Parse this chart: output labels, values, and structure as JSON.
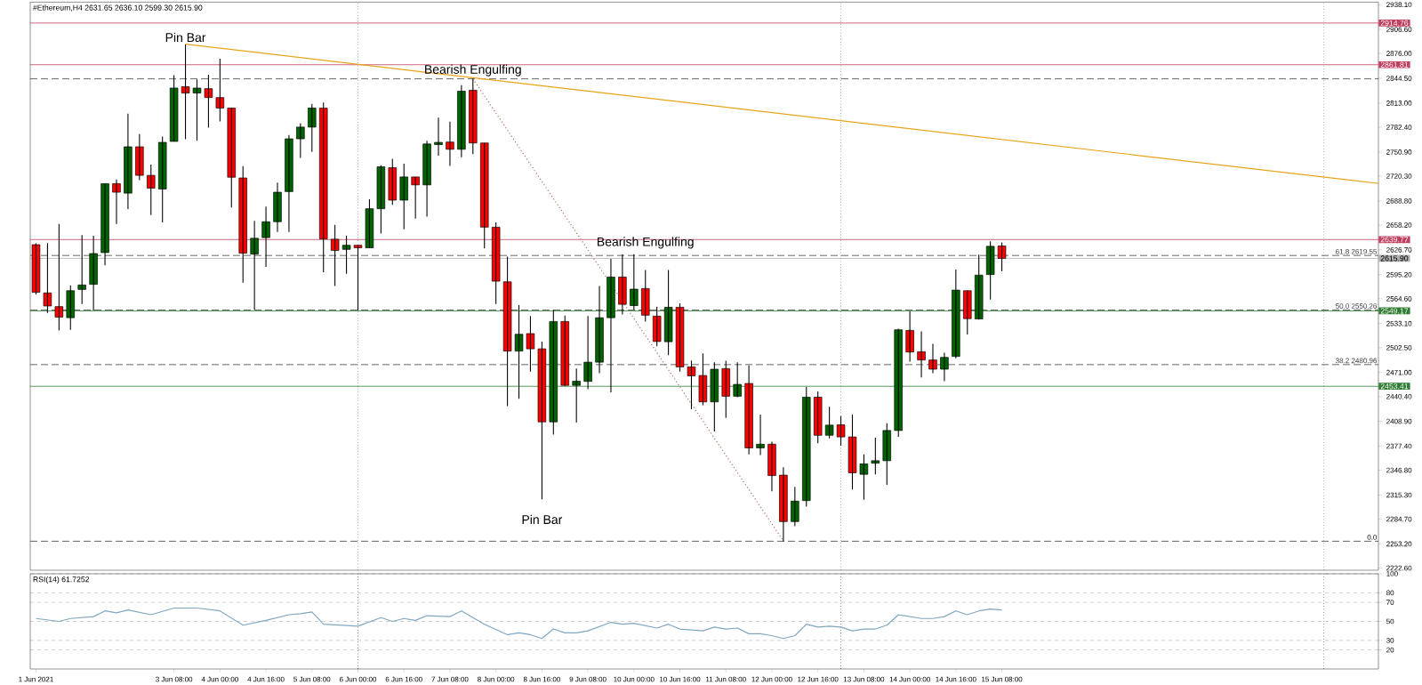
{
  "chart_data": [
    {
      "type": "candlestick",
      "title": "#Ethereum,H4  2631.65 2636.10 2599.30 2615.90",
      "x": [
        "2021-06-01T08:00",
        "2021-06-01T12:00",
        "2021-06-01T16:00",
        "2021-06-01T20:00",
        "2021-06-02T00:00",
        "2021-06-02T04:00",
        "2021-06-02T08:00",
        "2021-06-02T12:00",
        "2021-06-02T16:00",
        "2021-06-02T20:00",
        "2021-06-03T00:00",
        "2021-06-03T04:00",
        "2021-06-03T08:00",
        "2021-06-03T12:00",
        "2021-06-03T16:00",
        "2021-06-03T20:00",
        "2021-06-04T00:00",
        "2021-06-04T04:00",
        "2021-06-04T08:00",
        "2021-06-04T12:00",
        "2021-06-04T16:00",
        "2021-06-04T20:00",
        "2021-06-05T00:00",
        "2021-06-05T04:00",
        "2021-06-05T08:00",
        "2021-06-05T12:00",
        "2021-06-05T16:00",
        "2021-06-05T20:00",
        "2021-06-06T00:00",
        "2021-06-06T04:00",
        "2021-06-06T08:00",
        "2021-06-06T12:00",
        "2021-06-06T16:00",
        "2021-06-06T20:00",
        "2021-06-07T00:00",
        "2021-06-07T04:00",
        "2021-06-07T08:00",
        "2021-06-07T12:00",
        "2021-06-07T16:00",
        "2021-06-07T20:00",
        "2021-06-08T00:00",
        "2021-06-08T04:00",
        "2021-06-08T08:00",
        "2021-06-08T12:00",
        "2021-06-08T16:00",
        "2021-06-08T20:00",
        "2021-06-09T00:00",
        "2021-06-09T04:00",
        "2021-06-09T08:00",
        "2021-06-09T12:00",
        "2021-06-09T16:00",
        "2021-06-09T20:00",
        "2021-06-10T00:00",
        "2021-06-10T04:00",
        "2021-06-10T08:00",
        "2021-06-10T12:00",
        "2021-06-10T16:00",
        "2021-06-10T20:00",
        "2021-06-11T00:00",
        "2021-06-11T04:00",
        "2021-06-11T08:00",
        "2021-06-11T12:00",
        "2021-06-11T16:00",
        "2021-06-11T20:00",
        "2021-06-12T00:00",
        "2021-06-12T04:00",
        "2021-06-12T08:00",
        "2021-06-12T12:00",
        "2021-06-12T16:00",
        "2021-06-12T20:00",
        "2021-06-13T00:00",
        "2021-06-13T04:00",
        "2021-06-13T08:00",
        "2021-06-13T12:00",
        "2021-06-13T16:00",
        "2021-06-13T20:00",
        "2021-06-14T00:00",
        "2021-06-14T04:00",
        "2021-06-14T08:00",
        "2021-06-14T12:00",
        "2021-06-14T16:00",
        "2021-06-14T20:00",
        "2021-06-15T00:00",
        "2021-06-15T04:00",
        "2021-06-15T08:00"
      ],
      "ohlc": [
        [
          2633.3,
          2635,
          2570,
          2572.8
        ],
        [
          2572.0,
          2635.3,
          2546.6,
          2555.4
        ],
        [
          2554.6,
          2659.5,
          2524.4,
          2541.3
        ],
        [
          2540.5,
          2581.7,
          2525.2,
          2574.8
        ],
        [
          2576.4,
          2645.4,
          2557.9,
          2582.1
        ],
        [
          2582.9,
          2644.6,
          2549.8,
          2622.0
        ],
        [
          2623.2,
          2710.8,
          2607.1,
          2710.8
        ],
        [
          2710.8,
          2716.0,
          2659.5,
          2699.9
        ],
        [
          2698.7,
          2799.6,
          2678.5,
          2757.6
        ],
        [
          2757.6,
          2773.7,
          2715.2,
          2721.3
        ],
        [
          2721.3,
          2735.0,
          2670.8,
          2705.1
        ],
        [
          2703.9,
          2770.5,
          2661.6,
          2763.2
        ],
        [
          2764.4,
          2848.4,
          2764.4,
          2832.2
        ],
        [
          2833.9,
          2887.5,
          2767.3,
          2825.8
        ],
        [
          2825.8,
          2843.1,
          2765.3,
          2832.2
        ],
        [
          2831.4,
          2849.2,
          2781.8,
          2820.1
        ],
        [
          2820.1,
          2869.4,
          2789.9,
          2806.8
        ],
        [
          2806.8,
          2806.8,
          2680.5,
          2718.9
        ],
        [
          2718.0,
          2733.0,
          2584.9,
          2622.4
        ],
        [
          2621.2,
          2663.6,
          2550.6,
          2641.4
        ],
        [
          2642.2,
          2681.7,
          2605.1,
          2662.4
        ],
        [
          2662.4,
          2712.0,
          2649.4,
          2699.9
        ],
        [
          2700.7,
          2772.5,
          2649.4,
          2767.7
        ],
        [
          2767.7,
          2787.4,
          2743.5,
          2782.6
        ],
        [
          2782.6,
          2812.1,
          2751.1,
          2806.8
        ],
        [
          2806.8,
          2813.7,
          2598.2,
          2640.6
        ],
        [
          2640.2,
          2658.3,
          2580.9,
          2626.0
        ],
        [
          2627.3,
          2644.6,
          2596.2,
          2632.5
        ],
        [
          2632.5,
          2633.0,
          2549.8,
          2629.3
        ],
        [
          2629.3,
          2691.0,
          2629.3,
          2678.9
        ],
        [
          2678.9,
          2734.2,
          2647.4,
          2732.2
        ],
        [
          2731.0,
          2742.3,
          2683.8,
          2689.8
        ],
        [
          2689.8,
          2736.2,
          2652.7,
          2719.3
        ],
        [
          2719.3,
          2719.3,
          2666.4,
          2709.2
        ],
        [
          2709.2,
          2765.3,
          2668.8,
          2761.2
        ],
        [
          2760.4,
          2794.7,
          2746.3,
          2763.2
        ],
        [
          2763.6,
          2789.5,
          2733.4,
          2754.4
        ],
        [
          2754.4,
          2835.9,
          2744.3,
          2828.2
        ],
        [
          2829.4,
          2843.9,
          2748.3,
          2762.4
        ],
        [
          2762.4,
          2762.4,
          2628.5,
          2655.5
        ],
        [
          2655.5,
          2661.6,
          2557.9,
          2586.9
        ],
        [
          2586.1,
          2618.0,
          2428.3,
          2498.1
        ],
        [
          2498.1,
          2556.6,
          2437.6,
          2519.5
        ],
        [
          2520.3,
          2542.5,
          2471.9,
          2501.0
        ],
        [
          2501.0,
          2510.2,
          2310.0,
          2408.2
        ],
        [
          2408.2,
          2550.6,
          2392.0,
          2535.7
        ],
        [
          2535.7,
          2543.3,
          2453.8,
          2454.6
        ],
        [
          2454.6,
          2475.9,
          2407.4,
          2459.8
        ],
        [
          2459.6,
          2542.5,
          2449.7,
          2484.0
        ],
        [
          2484.0,
          2580.9,
          2469.9,
          2540.5
        ],
        [
          2540.5,
          2615.1,
          2445.7,
          2592.2
        ],
        [
          2592.2,
          2621.2,
          2544.5,
          2557.5
        ],
        [
          2555.9,
          2621.2,
          2550.6,
          2576.8
        ],
        [
          2577.6,
          2601.0,
          2535.7,
          2543.7
        ],
        [
          2542.5,
          2554.6,
          2504.2,
          2510.3
        ],
        [
          2510.0,
          2601.0,
          2492.9,
          2553.8
        ],
        [
          2553.8,
          2558.7,
          2471.9,
          2478.0
        ],
        [
          2478.0,
          2486.0,
          2424.3,
          2466.7
        ],
        [
          2467.1,
          2495.3,
          2429.5,
          2433.6
        ],
        [
          2433.6,
          2484.0,
          2396.1,
          2475.1
        ],
        [
          2475.9,
          2486.0,
          2413.4,
          2440.8
        ],
        [
          2440.8,
          2484.0,
          2439.6,
          2455.8
        ],
        [
          2457.0,
          2480.0,
          2367.0,
          2375.1
        ],
        [
          2375.1,
          2417.4,
          2366.2,
          2379.9
        ],
        [
          2379.9,
          2383.1,
          2320.0,
          2340.0
        ],
        [
          2340.6,
          2350.7,
          2256.6,
          2281.6
        ],
        [
          2281.6,
          2325.8,
          2275.8,
          2307.6
        ],
        [
          2308.2,
          2452.6,
          2300.5,
          2439.6
        ],
        [
          2439.6,
          2446.9,
          2381.1,
          2391.2
        ],
        [
          2391.2,
          2427.5,
          2387.2,
          2404.1
        ],
        [
          2404.5,
          2415.4,
          2378.0,
          2389.1
        ],
        [
          2389.1,
          2417.4,
          2322.3,
          2343.5
        ],
        [
          2341.6,
          2367.0,
          2309.3,
          2354.9
        ],
        [
          2355.7,
          2388.2,
          2341.6,
          2358.9
        ],
        [
          2358.9,
          2406.5,
          2328.2,
          2397.3
        ],
        [
          2397.3,
          2526.4,
          2389.2,
          2525.2
        ],
        [
          2524.4,
          2548.6,
          2484.8,
          2496.9
        ],
        [
          2497.3,
          2523.2,
          2464.7,
          2486.8
        ],
        [
          2486.8,
          2507.4,
          2469.9,
          2475.1
        ],
        [
          2475.1,
          2496.1,
          2459.8,
          2490.1
        ],
        [
          2491.3,
          2601.8,
          2488.9,
          2575.6
        ],
        [
          2574.8,
          2574.8,
          2519.1,
          2539.3
        ],
        [
          2539.0,
          2620.5,
          2538.0,
          2594.6
        ],
        [
          2595.3,
          2637.4,
          2563.4,
          2631.2
        ],
        [
          2631.65,
          2636.1,
          2599.3,
          2615.9
        ]
      ],
      "colors": [
        "#ff0000",
        "#ff0000",
        "#ff0000",
        "#006400",
        "#006400",
        "#006400",
        "#006400",
        "#ff0000",
        "#006400",
        "#ff0000",
        "#ff0000",
        "#006400",
        "#006400",
        "#ff0000",
        "#006400",
        "#ff0000",
        "#ff0000",
        "#ff0000",
        "#ff0000",
        "#006400",
        "#006400",
        "#006400",
        "#006400",
        "#006400",
        "#006400",
        "#ff0000",
        "#ff0000",
        "#006400",
        "#ff0000",
        "#006400",
        "#006400",
        "#ff0000",
        "#006400",
        "#ff0000",
        "#006400",
        "#006400",
        "#ff0000",
        "#006400",
        "#ff0000",
        "#ff0000",
        "#ff0000",
        "#ff0000",
        "#006400",
        "#ff0000",
        "#ff0000",
        "#006400",
        "#ff0000",
        "#006400",
        "#006400",
        "#006400",
        "#006400",
        "#ff0000",
        "#006400",
        "#ff0000",
        "#ff0000",
        "#006400",
        "#ff0000",
        "#ff0000",
        "#ff0000",
        "#006400",
        "#ff0000",
        "#006400",
        "#ff0000",
        "#006400",
        "#ff0000",
        "#ff0000",
        "#006400",
        "#006400",
        "#ff0000",
        "#006400",
        "#ff0000",
        "#ff0000",
        "#006400",
        "#006400",
        "#006400",
        "#006400",
        "#ff0000",
        "#ff0000",
        "#ff0000",
        "#006400",
        "#006400",
        "#ff0000",
        "#006400",
        "#006400",
        "#ff0000"
      ],
      "series": [
        {
          "type": "line",
          "x": [
            "2021-06-03T12:00",
            "2021-06-20T19:00"
          ],
          "values": [
            2888,
            2711
          ],
          "color": "#e8a317",
          "line_style": "solid"
        },
        {
          "type": "line",
          "x": [
            "2021-06-07T16:00",
            "2021-06-12T04:00"
          ],
          "values": [
            2844,
            2257
          ],
          "color": "#b07060",
          "line_style": "dotted"
        }
      ],
      "xlim": [
        "2021-06-01T06:00",
        "2021-06-20T19:00"
      ],
      "ylim": [
        2219.8,
        2941.3
      ],
      "yticks": [
        {
          "value": 2938.1,
          "label": "2938.10"
        },
        {
          "value": 2906.6,
          "label": "2906.60"
        },
        {
          "value": 2876,
          "label": "2876.00"
        },
        {
          "value": 2844.5,
          "label": "2844.50"
        },
        {
          "value": 2813,
          "label": "2813.00"
        },
        {
          "value": 2782.4,
          "label": "2782.40"
        },
        {
          "value": 2750.9,
          "label": "2750.90"
        },
        {
          "value": 2720.3,
          "label": "2720.30"
        },
        {
          "value": 2688.8,
          "label": "2688.80"
        },
        {
          "value": 2658.2,
          "label": "2658.20"
        },
        {
          "value": 2626.7,
          "label": "2626.70"
        },
        {
          "value": 2595.2,
          "label": "2595.20"
        },
        {
          "value": 2564.6,
          "label": "2564.60"
        },
        {
          "value": 2533.1,
          "label": "2533.10"
        },
        {
          "value": 2502.5,
          "label": "2502.50"
        },
        {
          "value": 2471,
          "label": "2471.00"
        },
        {
          "value": 2440.4,
          "label": "2440.40"
        },
        {
          "value": 2408.9,
          "label": "2408.90"
        },
        {
          "value": 2377.4,
          "label": "2377.40"
        },
        {
          "value": 2346.8,
          "label": "2346.80"
        },
        {
          "value": 2315.3,
          "label": "2315.30"
        },
        {
          "value": 2284.7,
          "label": "2284.70"
        },
        {
          "value": 2253.2,
          "label": "2253.20"
        },
        {
          "value": 2222.6,
          "label": "2222.60"
        }
      ],
      "tick_labels": "y",
      "ref_lines": [
        {
          "axis": "y",
          "value": 2914.76,
          "label": "2914.76",
          "color": "#c04060",
          "line_style": "solid"
        },
        {
          "axis": "y",
          "value": 2861.81,
          "label": "2861.81",
          "color": "#c04060",
          "line_style": "solid"
        },
        {
          "axis": "y",
          "value": 2639.77,
          "label": "2639.77",
          "color": "#c04060",
          "line_style": "solid"
        },
        {
          "axis": "y",
          "value": 2615.9,
          "label": "2615.90",
          "color": "#b0b0b0",
          "line_style": "solid"
        },
        {
          "axis": "y",
          "value": 2549.17,
          "label": "2549.17",
          "color": "#2e7d32",
          "line_style": "solid"
        },
        {
          "axis": "y",
          "value": 2453.41,
          "label": "2453.41",
          "color": "#2e7d32",
          "line_style": "solid"
        },
        {
          "axis": "y",
          "value": 2843.89,
          "color": "#404040",
          "line_style": "dashed"
        },
        {
          "axis": "y",
          "value": 2619.55,
          "label": "61.8 2619.55",
          "color": "#404040",
          "line_style": "dashed"
        },
        {
          "axis": "y",
          "value": 2550.26,
          "label": "50.0 2550.26",
          "color": "#404040",
          "line_style": "dashed"
        },
        {
          "axis": "y",
          "value": 2480.96,
          "label": "38.2 2480.96",
          "color": "#404040",
          "line_style": "dashed"
        },
        {
          "axis": "y",
          "value": 2256.63,
          "color": "#404040",
          "line_style": "dashed"
        },
        {
          "axis": "x",
          "value": "2021-06-06T00:00",
          "color": "#505050",
          "line_style": "dotted"
        },
        {
          "axis": "x",
          "value": "2021-06-13T00:00",
          "color": "#505050",
          "line_style": "dotted"
        },
        {
          "axis": "x",
          "value": "2021-06-20T00:00",
          "color": "#505050",
          "line_style": "dotted"
        }
      ],
      "annotations": [
        {
          "text": "Pin Bar",
          "x": "2021-06-03T12:00",
          "y": 2887.5
        },
        {
          "text": "Bearish Engulfing",
          "x": "2021-06-07T16:00",
          "y": 2843.9
        },
        {
          "text": "Bearish Engulfing",
          "x": "2021-06-10T04:00",
          "y": 2625
        },
        {
          "text": "Pin Bar",
          "x": "2021-06-08T16:00",
          "y": 2310.0
        },
        {
          "text": "0.0",
          "x": "2021-06-20T19:00",
          "y": 2256.63
        }
      ]
    },
    {
      "type": "line",
      "title": "RSI(14) 61.7252",
      "color": "#7fa7c0",
      "x": [
        "2021-06-01T08:00",
        "2021-06-01T16:00",
        "2021-06-01T20:00",
        "2021-06-02T04:00",
        "2021-06-02T08:00",
        "2021-06-02T12:00",
        "2021-06-02T16:00",
        "2021-06-03T00:00",
        "2021-06-03T08:00",
        "2021-06-03T16:00",
        "2021-06-04T00:00",
        "2021-06-04T08:00",
        "2021-06-04T16:00",
        "2021-06-05T00:00",
        "2021-06-05T04:00",
        "2021-06-05T08:00",
        "2021-06-05T12:00",
        "2021-06-06T00:00",
        "2021-06-06T08:00",
        "2021-06-06T12:00",
        "2021-06-06T16:00",
        "2021-06-06T20:00",
        "2021-06-07T00:00",
        "2021-06-07T08:00",
        "2021-06-07T12:00",
        "2021-06-07T20:00",
        "2021-06-08T04:00",
        "2021-06-08T08:00",
        "2021-06-08T12:00",
        "2021-06-08T16:00",
        "2021-06-08T20:00",
        "2021-06-09T00:00",
        "2021-06-09T04:00",
        "2021-06-09T08:00",
        "2021-06-09T16:00",
        "2021-06-09T20:00",
        "2021-06-10T00:00",
        "2021-06-10T08:00",
        "2021-06-10T12:00",
        "2021-06-10T16:00",
        "2021-06-11T00:00",
        "2021-06-11T04:00",
        "2021-06-11T08:00",
        "2021-06-11T12:00",
        "2021-06-11T16:00",
        "2021-06-11T20:00",
        "2021-06-12T00:00",
        "2021-06-12T04:00",
        "2021-06-12T08:00",
        "2021-06-12T12:00",
        "2021-06-12T16:00",
        "2021-06-12T20:00",
        "2021-06-13T00:00",
        "2021-06-13T04:00",
        "2021-06-13T08:00",
        "2021-06-13T12:00",
        "2021-06-13T16:00",
        "2021-06-13T20:00",
        "2021-06-14T00:00",
        "2021-06-14T04:00",
        "2021-06-14T08:00",
        "2021-06-14T12:00",
        "2021-06-14T16:00",
        "2021-06-14T20:00",
        "2021-06-15T00:00",
        "2021-06-15T04:00",
        "2021-06-15T08:00"
      ],
      "values": [
        53,
        50,
        53,
        55,
        61,
        59,
        62,
        57,
        64,
        64,
        61,
        46,
        51,
        57,
        58,
        60,
        47,
        45,
        54,
        50,
        53,
        51,
        56,
        55,
        61,
        47,
        36,
        38,
        36,
        32,
        42,
        38,
        38,
        40,
        49,
        47,
        48,
        43,
        47,
        42,
        40,
        44,
        42,
        43,
        37,
        37,
        35,
        32,
        35,
        47,
        44,
        45,
        44,
        40,
        42,
        42,
        46,
        57,
        55,
        53,
        53,
        55,
        61,
        57,
        61,
        63,
        62
      ],
      "xlim": [
        "2021-06-01T06:00",
        "2021-06-20T19:00"
      ],
      "ylim": [
        0,
        100
      ],
      "yticks": [
        100,
        80,
        70,
        50,
        30,
        20
      ],
      "grid": "y",
      "xticks": [
        {
          "value": "2021-06-01T08:00",
          "label": "1 Jun 2021"
        },
        {
          "value": "2021-06-03T08:00",
          "label": "3 Jun 08:00"
        },
        {
          "value": "2021-06-04T00:00",
          "label": "4 Jun 00:00"
        },
        {
          "value": "2021-06-04T16:00",
          "label": "4 Jun 16:00"
        },
        {
          "value": "2021-06-05T08:00",
          "label": "5 Jun 08:00"
        },
        {
          "value": "2021-06-06T00:00",
          "label": "6 Jun 00:00"
        },
        {
          "value": "2021-06-06T16:00",
          "label": "6 Jun 16:00"
        },
        {
          "value": "2021-06-07T08:00",
          "label": "7 Jun 08:00"
        },
        {
          "value": "2021-06-08T00:00",
          "label": "8 Jun 00:00"
        },
        {
          "value": "2021-06-08T16:00",
          "label": "8 Jun 16:00"
        },
        {
          "value": "2021-06-09T08:00",
          "label": "9 Jun 08:00"
        },
        {
          "value": "2021-06-10T00:00",
          "label": "10 Jun 00:00"
        },
        {
          "value": "2021-06-10T16:00",
          "label": "10 Jun 16:00"
        },
        {
          "value": "2021-06-11T08:00",
          "label": "11 Jun 08:00"
        },
        {
          "value": "2021-06-12T00:00",
          "label": "12 Jun 00:00"
        },
        {
          "value": "2021-06-12T16:00",
          "label": "12 Jun 16:00"
        },
        {
          "value": "2021-06-13T08:00",
          "label": "13 Jun 08:00"
        },
        {
          "value": "2021-06-14T00:00",
          "label": "14 Jun 00:00"
        },
        {
          "value": "2021-06-14T16:00",
          "label": "14 Jun 16:00"
        },
        {
          "value": "2021-06-15T08:00",
          "label": "15 Jun 08:00"
        }
      ],
      "ref_lines": [
        {
          "axis": "x",
          "value": "2021-06-06T00:00",
          "color": "#000000",
          "line_style": "dotted"
        },
        {
          "axis": "x",
          "value": "2021-06-13T00:00",
          "color": "#000000",
          "line_style": "dotted"
        },
        {
          "axis": "x",
          "value": "2021-06-20T00:00",
          "color": "#000000",
          "line_style": "dotted"
        }
      ]
    }
  ]
}
